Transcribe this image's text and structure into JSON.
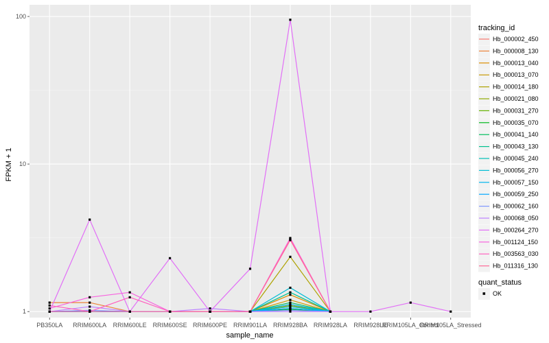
{
  "chart_data": {
    "type": "line",
    "xlabel": "sample_name",
    "ylabel": "FPKM + 1",
    "y_scale": "log10",
    "ylim": [
      0.91,
      120
    ],
    "y_ticks": [
      1,
      10,
      100
    ],
    "y_tick_labels": [
      "1",
      "10",
      "100"
    ],
    "grid": true,
    "legend_position": "right",
    "categories": [
      "PB350LA",
      "RRIM600LA",
      "RRIM600LE",
      "RRIM600SE",
      "RRIM600PE",
      "RRIM901LA",
      "RRIM928BA",
      "RRIM928LA",
      "RRIM928LE",
      "RRIM105LA_Control",
      "RRIM105LA_Stressed"
    ],
    "tick_labels": [
      "PB350LA",
      "RRIM600LA",
      "RRIM600LE",
      "RRIM600SE",
      "RRIM600PE",
      "RRIM901LA",
      "RRIM928BA",
      "RRIM928LA",
      "RRIM928LE",
      "RRIM105LA_Control",
      "RRIM105LA_Stressed"
    ],
    "series_title": "tracking_id",
    "series": [
      {
        "name": "Hb_000002_450",
        "color": "#F8766D",
        "values": [
          1.0,
          1.0,
          1.0,
          1.0,
          1.0,
          1.0,
          1.05,
          1.0,
          null,
          null,
          null
        ]
      },
      {
        "name": "Hb_000008_130",
        "color": "#EC8239",
        "values": [
          1.15,
          1.15,
          1.0,
          1.0,
          1.0,
          1.0,
          1.1,
          1.0,
          null,
          null,
          null
        ]
      },
      {
        "name": "Hb_000013_040",
        "color": "#DB8E00",
        "values": [
          1.0,
          1.0,
          1.0,
          1.0,
          1.0,
          1.0,
          1.3,
          1.0,
          null,
          null,
          null
        ]
      },
      {
        "name": "Hb_000013_070",
        "color": "#C79800",
        "values": [
          1.0,
          1.0,
          1.0,
          1.0,
          1.0,
          1.0,
          1.2,
          1.0,
          null,
          null,
          null
        ]
      },
      {
        "name": "Hb_000014_180",
        "color": "#AEA200",
        "values": [
          1.0,
          1.0,
          1.0,
          1.0,
          1.0,
          1.0,
          2.35,
          1.0,
          null,
          null,
          null
        ]
      },
      {
        "name": "Hb_000021_080",
        "color": "#8FAA00",
        "values": [
          1.0,
          1.0,
          1.0,
          1.0,
          1.0,
          1.0,
          1.1,
          1.0,
          null,
          null,
          null
        ]
      },
      {
        "name": "Hb_000031_270",
        "color": "#64B200",
        "values": [
          1.0,
          1.0,
          1.0,
          1.0,
          1.0,
          1.0,
          1.05,
          1.0,
          null,
          null,
          null
        ]
      },
      {
        "name": "Hb_000035_070",
        "color": "#00B81B",
        "values": [
          1.0,
          1.0,
          1.0,
          1.0,
          1.0,
          1.0,
          1.03,
          1.0,
          null,
          null,
          null
        ]
      },
      {
        "name": "Hb_000041_140",
        "color": "#00BD5C",
        "values": [
          1.0,
          1.0,
          1.0,
          1.0,
          1.0,
          1.0,
          1.15,
          1.0,
          null,
          null,
          null
        ]
      },
      {
        "name": "Hb_000043_130",
        "color": "#00C08E",
        "values": [
          1.0,
          1.0,
          1.0,
          1.0,
          1.0,
          1.0,
          1.35,
          1.0,
          null,
          null,
          null
        ]
      },
      {
        "name": "Hb_000045_240",
        "color": "#00C1B7",
        "values": [
          1.0,
          1.0,
          1.0,
          1.0,
          1.0,
          1.0,
          1.08,
          1.0,
          null,
          null,
          null
        ]
      },
      {
        "name": "Hb_000056_270",
        "color": "#00BDD4",
        "values": [
          1.0,
          1.0,
          1.0,
          1.0,
          1.0,
          1.0,
          1.45,
          1.0,
          null,
          null,
          null
        ]
      },
      {
        "name": "Hb_000057_150",
        "color": "#00B5EE",
        "values": [
          1.0,
          1.0,
          1.0,
          1.0,
          1.0,
          1.0,
          1.12,
          1.0,
          null,
          null,
          null
        ]
      },
      {
        "name": "Hb_000059_250",
        "color": "#00A7FF",
        "values": [
          1.0,
          1.0,
          1.0,
          1.0,
          1.0,
          1.0,
          1.05,
          1.0,
          null,
          null,
          null
        ]
      },
      {
        "name": "Hb_000062_160",
        "color": "#7F96FF",
        "values": [
          1.0,
          1.02,
          1.0,
          1.0,
          1.0,
          1.0,
          1.02,
          1.0,
          null,
          null,
          null
        ]
      },
      {
        "name": "Hb_000068_050",
        "color": "#BC81FF",
        "values": [
          1.0,
          1.08,
          1.0,
          1.0,
          1.05,
          1.0,
          1.0,
          1.0,
          null,
          null,
          null
        ]
      },
      {
        "name": "Hb_000264_270",
        "color": "#E26EF7",
        "values": [
          1.0,
          4.2,
          1.0,
          2.3,
          1.0,
          1.95,
          95,
          1.0,
          1.0,
          1.15,
          1.0
        ]
      },
      {
        "name": "Hb_001124_150",
        "color": "#F863DF",
        "values": [
          1.05,
          1.25,
          1.35,
          1.0,
          1.0,
          1.0,
          3.15,
          1.0,
          null,
          null,
          null
        ]
      },
      {
        "name": "Hb_003563_030",
        "color": "#FF62BF",
        "values": [
          1.1,
          1.0,
          1.25,
          1.0,
          1.0,
          1.0,
          3.1,
          1.0,
          null,
          null,
          null
        ]
      },
      {
        "name": "Hb_011316_130",
        "color": "#FF6A98",
        "values": [
          1.0,
          1.0,
          1.0,
          1.0,
          1.0,
          1.0,
          3.05,
          1.0,
          null,
          null,
          null
        ]
      }
    ],
    "shape_legend": {
      "title": "quant_status",
      "items": [
        "OK"
      ]
    }
  }
}
